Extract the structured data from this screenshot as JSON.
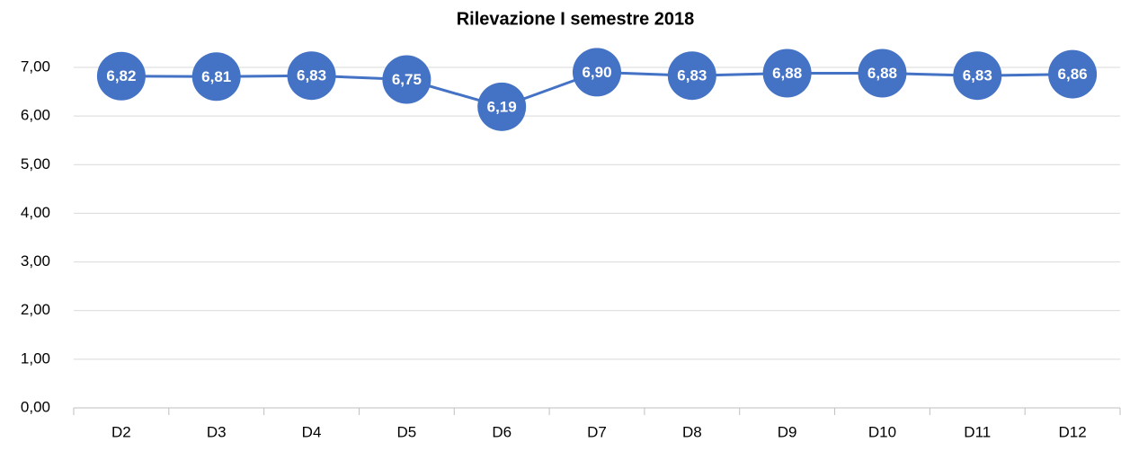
{
  "chart_data": {
    "type": "line",
    "title": "Rilevazione I semestre 2018",
    "categories": [
      "D2",
      "D3",
      "D4",
      "D5",
      "D6",
      "D7",
      "D8",
      "D9",
      "D10",
      "D11",
      "D12"
    ],
    "series": [
      {
        "name": "Rilevazione I semestre 2018",
        "color": "#4472c4",
        "values": [
          6.82,
          6.81,
          6.83,
          6.75,
          6.19,
          6.9,
          6.83,
          6.88,
          6.88,
          6.83,
          6.86
        ],
        "value_labels": [
          "6,82",
          "6,81",
          "6,83",
          "6,75",
          "6,19",
          "6,90",
          "6,83",
          "6,88",
          "6,88",
          "6,83",
          "6,86"
        ]
      }
    ],
    "ylim": [
      0,
      7
    ],
    "yticks": [
      {
        "value": 0,
        "label": "0,00"
      },
      {
        "value": 1,
        "label": "1,00"
      },
      {
        "value": 2,
        "label": "2,00"
      },
      {
        "value": 3,
        "label": "3,00"
      },
      {
        "value": 4,
        "label": "4,00"
      },
      {
        "value": 5,
        "label": "5,00"
      },
      {
        "value": 6,
        "label": "6,00"
      },
      {
        "value": 7,
        "label": "7,00"
      }
    ],
    "grid": true
  }
}
